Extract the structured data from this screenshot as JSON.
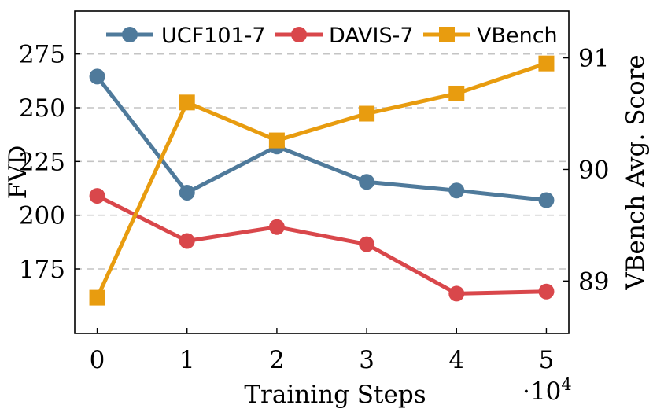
{
  "chart_data": {
    "type": "line",
    "x": [
      0,
      1,
      2,
      3,
      4,
      5
    ],
    "x_ticks": [
      "0",
      "1",
      "2",
      "3",
      "4",
      "5"
    ],
    "x_multiplier_base": "·10",
    "x_multiplier_exp": "4",
    "xlabel": "Training Steps",
    "xlim": [
      -0.25,
      5.25
    ],
    "ylabel_left": "FVD",
    "ylim_left": [
      145,
      295
    ],
    "yticks_left": [
      "175",
      "200",
      "225",
      "250",
      "275"
    ],
    "ylabel_right": "VBench Avg. Score",
    "ylim_right": [
      88.53,
      91.42
    ],
    "yticks_right": [
      "89",
      "90",
      "91"
    ],
    "grid": "horizontal dashed",
    "legend_position": "top",
    "series": [
      {
        "name": "UCF101-7",
        "axis": "left",
        "color": "#4f7a9b",
        "marker": "circle",
        "values": [
          264.5,
          210.5,
          232,
          215.5,
          211.5,
          207
        ]
      },
      {
        "name": "DAVIS-7",
        "axis": "left",
        "color": "#d9474b",
        "marker": "circle",
        "values": [
          209,
          188,
          194.5,
          186.5,
          163.5,
          164.5
        ]
      },
      {
        "name": "VBench",
        "axis": "right",
        "color": "#e89c0f",
        "marker": "square",
        "values": [
          88.85,
          90.6,
          90.26,
          90.5,
          90.68,
          90.95
        ]
      }
    ]
  }
}
